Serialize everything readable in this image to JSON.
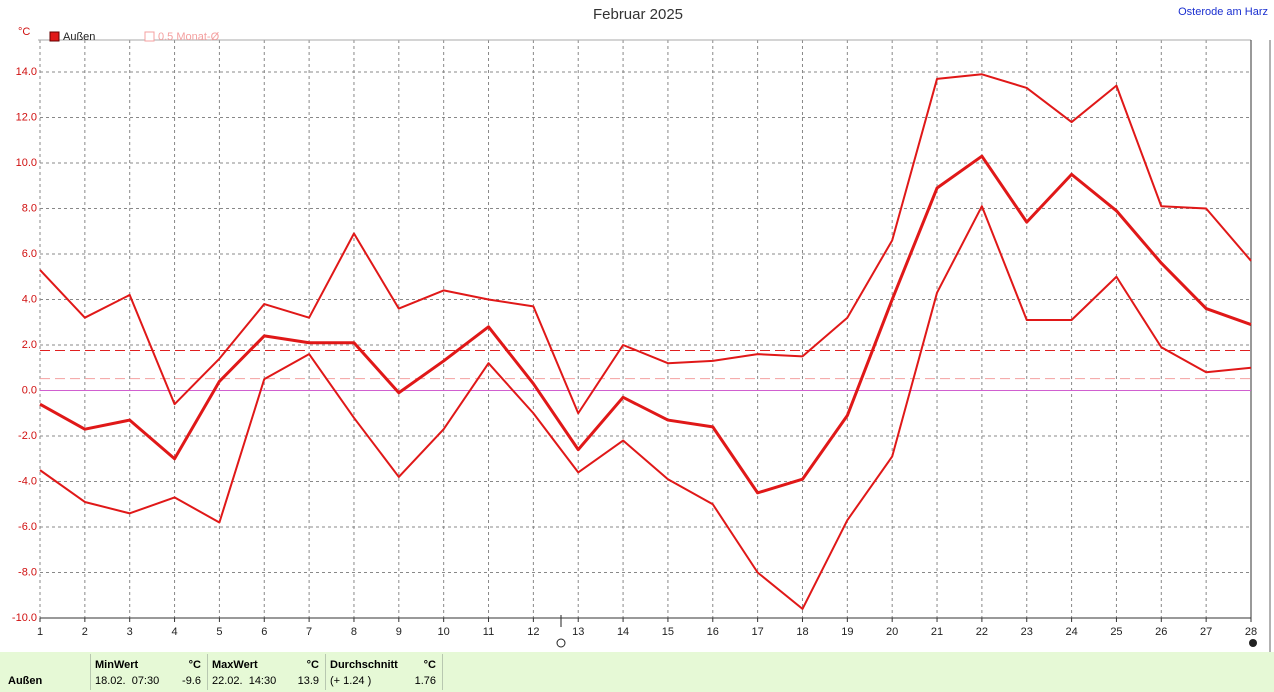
{
  "chart_data": {
    "type": "line",
    "title": "Februar 2025",
    "location": "Osterode am Harz",
    "y_unit": "°C",
    "x": [
      1,
      2,
      3,
      4,
      5,
      6,
      7,
      8,
      9,
      10,
      11,
      12,
      13,
      14,
      15,
      16,
      17,
      18,
      19,
      20,
      21,
      22,
      23,
      24,
      25,
      26,
      27,
      28
    ],
    "xlim": [
      1,
      28
    ],
    "xticks": [
      1,
      2,
      3,
      4,
      5,
      6,
      7,
      8,
      9,
      10,
      11,
      12,
      13,
      14,
      15,
      16,
      17,
      18,
      19,
      20,
      21,
      22,
      23,
      24,
      25,
      26,
      27,
      28
    ],
    "ylim": [
      -10,
      14
    ],
    "yticks": [
      {
        "value": -10,
        "label": "-10.0"
      },
      {
        "value": -8,
        "label": "-8.0"
      },
      {
        "value": -6,
        "label": "-6.0"
      },
      {
        "value": -4,
        "label": "-4.0"
      },
      {
        "value": -2,
        "label": "-2.0"
      },
      {
        "value": 0,
        "label": "0.0"
      },
      {
        "value": 2,
        "label": "2.0"
      },
      {
        "value": 4,
        "label": "4.0"
      },
      {
        "value": 6,
        "label": "6.0"
      },
      {
        "value": 8,
        "label": "8.0"
      },
      {
        "value": 10,
        "label": "10.0"
      },
      {
        "value": 12,
        "label": "12.0"
      },
      {
        "value": 14,
        "label": "14.0"
      }
    ],
    "grid": true,
    "series": [
      {
        "color": "#e01818",
        "line_width": 2,
        "values": [
          5.3,
          3.2,
          4.2,
          -0.6,
          1.4,
          3.8,
          3.2,
          6.9,
          3.6,
          4.4,
          4.0,
          3.7,
          -1.0,
          2.0,
          1.2,
          1.3,
          1.6,
          1.5,
          3.2,
          6.6,
          13.7,
          13.9,
          13.3,
          11.8,
          13.4,
          8.1,
          8.0,
          5.7
        ]
      },
      {
        "name": "Außen",
        "color": "#e01818",
        "line_width": 3,
        "values": [
          -0.6,
          -1.7,
          -1.3,
          -3.0,
          0.4,
          2.4,
          2.1,
          2.1,
          -0.1,
          1.3,
          2.8,
          0.3,
          -2.6,
          -0.3,
          -1.3,
          -1.6,
          -4.5,
          -3.9,
          -1.1,
          4.0,
          8.9,
          10.3,
          7.4,
          9.5,
          7.9,
          5.6,
          3.6,
          2.9
        ]
      },
      {
        "color": "#e01818",
        "line_width": 2,
        "values": [
          -3.5,
          -4.9,
          -5.4,
          -4.7,
          -5.8,
          0.5,
          1.6,
          -1.2,
          -3.8,
          -1.7,
          1.2,
          -1.0,
          -3.6,
          -2.2,
          -3.9,
          -5.0,
          -8.0,
          -9.6,
          -5.7,
          -2.9,
          4.3,
          8.1,
          3.1,
          3.1,
          5.0,
          1.9,
          0.8,
          1.0
        ]
      }
    ],
    "reference_lines": [
      {
        "value": 1.76,
        "color": "#e02020"
      },
      {
        "value": 0.52,
        "color": "#f4a0a0",
        "label": "0.5 Monat-Ø"
      }
    ],
    "stats": {
      "row_label": "Außen",
      "cells": [
        {
          "head": "MinWert",
          "unit": "°C",
          "when": "18.02.  07:30",
          "value": "-9.6"
        },
        {
          "head": "MaxWert",
          "unit": "°C",
          "when": "22.02.  14:30",
          "value": "13.9"
        },
        {
          "head": "Durchschnitt",
          "unit": "°C",
          "when": "(+ 1.24 )",
          "value": "1.76"
        }
      ]
    }
  }
}
